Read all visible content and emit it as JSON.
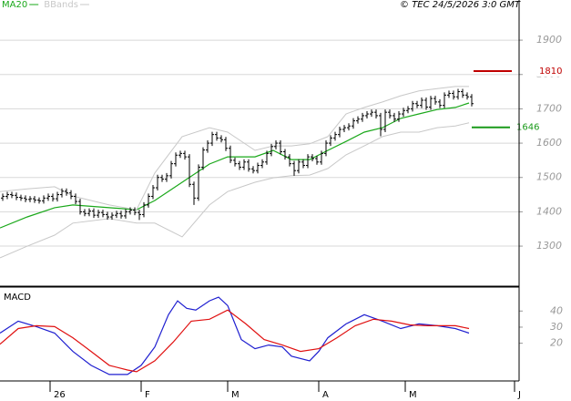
{
  "chart_data": [
    {
      "type": "ohlc",
      "copyright": "© TEC 24/5/2026 3:0 GMT",
      "color": "#000000",
      "xlim": [
        0,
        114
      ],
      "xticks": [
        {
          "value": 11,
          "label": "26"
        },
        {
          "value": 31,
          "label": "F"
        },
        {
          "value": 50,
          "label": "M"
        },
        {
          "value": 70,
          "label": "A"
        },
        {
          "value": 89,
          "label": "M"
        },
        {
          "value": 113,
          "label": "J"
        }
      ],
      "ylim": [
        1186,
        2017
      ],
      "yticks": [
        1300,
        1400,
        1500,
        1600,
        1700,
        1800,
        1900
      ],
      "grid": true,
      "open": [
        1440,
        1445,
        1450,
        1448,
        1442,
        1440,
        1436,
        1438,
        1434,
        1432,
        1440,
        1445,
        1438,
        1450,
        1460,
        1455,
        1445,
        1430,
        1400,
        1395,
        1402,
        1390,
        1398,
        1392,
        1385,
        1390,
        1395,
        1388,
        1400,
        1405,
        1398,
        1392,
        1420,
        1445,
        1470,
        1500,
        1495,
        1505,
        1540,
        1565,
        1570,
        1560,
        1480,
        1440,
        1530,
        1580,
        1600,
        1625,
        1615,
        1610,
        1585,
        1550,
        1540,
        1530,
        1545,
        1525,
        1520,
        1535,
        1545,
        1570,
        1590,
        1600,
        1575,
        1560,
        1540,
        1520,
        1545,
        1535,
        1560,
        1555,
        1545,
        1570,
        1600,
        1615,
        1625,
        1640,
        1645,
        1650,
        1665,
        1670,
        1680,
        1685,
        1690,
        1680,
        1640,
        1690,
        1680,
        1670,
        1685,
        1695,
        1700,
        1715,
        1710,
        1725,
        1705,
        1730,
        1720,
        1710,
        1740,
        1745,
        1735,
        1750,
        1740,
        1735
      ],
      "high": [
        1453,
        1458,
        1458,
        1456,
        1450,
        1448,
        1446,
        1446,
        1442,
        1448,
        1453,
        1453,
        1458,
        1468,
        1468,
        1463,
        1453,
        1438,
        1408,
        1410,
        1410,
        1406,
        1406,
        1400,
        1398,
        1403,
        1403,
        1408,
        1413,
        1413,
        1406,
        1428,
        1453,
        1478,
        1508,
        1508,
        1513,
        1548,
        1573,
        1578,
        1578,
        1568,
        1488,
        1538,
        1588,
        1608,
        1633,
        1633,
        1623,
        1618,
        1593,
        1558,
        1548,
        1553,
        1553,
        1533,
        1543,
        1553,
        1578,
        1598,
        1608,
        1608,
        1583,
        1568,
        1548,
        1553,
        1553,
        1568,
        1568,
        1563,
        1578,
        1608,
        1623,
        1633,
        1648,
        1653,
        1658,
        1673,
        1678,
        1688,
        1693,
        1698,
        1698,
        1688,
        1698,
        1698,
        1688,
        1693,
        1703,
        1708,
        1723,
        1723,
        1733,
        1733,
        1738,
        1738,
        1728,
        1748,
        1753,
        1753,
        1758,
        1758,
        1748,
        1743
      ],
      "low": [
        1432,
        1437,
        1440,
        1434,
        1432,
        1428,
        1428,
        1426,
        1424,
        1424,
        1432,
        1430,
        1430,
        1442,
        1447,
        1437,
        1422,
        1392,
        1387,
        1387,
        1382,
        1382,
        1384,
        1377,
        1377,
        1382,
        1380,
        1380,
        1392,
        1390,
        1376,
        1384,
        1412,
        1437,
        1462,
        1487,
        1487,
        1497,
        1532,
        1557,
        1552,
        1472,
        1420,
        1432,
        1522,
        1572,
        1592,
        1607,
        1602,
        1577,
        1542,
        1532,
        1522,
        1522,
        1517,
        1512,
        1512,
        1527,
        1537,
        1562,
        1582,
        1567,
        1552,
        1532,
        1505,
        1512,
        1527,
        1527,
        1547,
        1537,
        1537,
        1562,
        1592,
        1607,
        1617,
        1632,
        1637,
        1642,
        1657,
        1662,
        1672,
        1677,
        1672,
        1620,
        1632,
        1672,
        1662,
        1662,
        1677,
        1687,
        1692,
        1702,
        1702,
        1697,
        1697,
        1712,
        1702,
        1702,
        1732,
        1727,
        1727,
        1732,
        1727,
        1707
      ],
      "close": [
        1445,
        1450,
        1448,
        1442,
        1440,
        1436,
        1438,
        1434,
        1432,
        1440,
        1445,
        1438,
        1450,
        1460,
        1455,
        1445,
        1430,
        1400,
        1395,
        1402,
        1390,
        1398,
        1392,
        1385,
        1390,
        1395,
        1388,
        1400,
        1405,
        1398,
        1392,
        1420,
        1445,
        1470,
        1500,
        1495,
        1505,
        1540,
        1565,
        1570,
        1560,
        1480,
        1440,
        1530,
        1580,
        1600,
        1625,
        1615,
        1610,
        1585,
        1550,
        1540,
        1530,
        1545,
        1525,
        1520,
        1535,
        1545,
        1570,
        1590,
        1600,
        1575,
        1560,
        1540,
        1520,
        1545,
        1535,
        1560,
        1555,
        1545,
        1570,
        1600,
        1615,
        1625,
        1640,
        1645,
        1650,
        1665,
        1670,
        1680,
        1685,
        1690,
        1680,
        1640,
        1690,
        1680,
        1670,
        1685,
        1695,
        1700,
        1715,
        1710,
        1725,
        1705,
        1730,
        1720,
        1710,
        1740,
        1745,
        1735,
        1750,
        1740,
        1735,
        1715
      ],
      "series": [
        {
          "name": "MA20",
          "color": "#1aa81a",
          "x": [
            0,
            6,
            12,
            16,
            24,
            30,
            34,
            40,
            46,
            50,
            56,
            60,
            64,
            68,
            72,
            76,
            80,
            84,
            88,
            92,
            96,
            100,
            103
          ],
          "values": [
            1353,
            1385,
            1412,
            1420,
            1412,
            1406,
            1433,
            1486,
            1539,
            1560,
            1560,
            1579,
            1552,
            1552,
            1579,
            1605,
            1632,
            1645,
            1672,
            1685,
            1698,
            1704,
            1717
          ]
        },
        {
          "name": "BBands",
          "color": "#c8c8c8",
          "x": [
            0,
            6,
            12,
            16,
            24,
            30,
            34,
            40,
            46,
            50,
            56,
            60,
            64,
            68,
            72,
            76,
            80,
            84,
            88,
            92,
            96,
            100,
            103
          ],
          "values": [
            1459,
            1467,
            1473,
            1446,
            1420,
            1406,
            1513,
            1619,
            1645,
            1632,
            1579,
            1592,
            1592,
            1598,
            1619,
            1685,
            1704,
            1720,
            1738,
            1752,
            1759,
            1765,
            1765
          ],
          "lower": [
            1266,
            1300,
            1332,
            1367,
            1380,
            1367,
            1367,
            1327,
            1420,
            1459,
            1486,
            1499,
            1505,
            1507,
            1526,
            1566,
            1592,
            1619,
            1632,
            1632,
            1645,
            1650,
            1659
          ]
        }
      ],
      "levels": [
        {
          "value": 1810,
          "color": "#c00000"
        },
        {
          "value": 1646,
          "color": "#1a9a1a"
        }
      ]
    },
    {
      "type": "line",
      "title": "MACD",
      "ylim": [
        -3.4,
        54.3
      ],
      "yticks": [
        20,
        30,
        40
      ],
      "series": [
        {
          "color": "#1f1fd0",
          "x": [
            0,
            4,
            8,
            12,
            16,
            20,
            24,
            28,
            31,
            34,
            37,
            39,
            41,
            43,
            46,
            48,
            50,
            53,
            56,
            59,
            62,
            64,
            68,
            70,
            72,
            76,
            80,
            84,
            88,
            92,
            96,
            100,
            103
          ],
          "values": [
            26.3,
            33.7,
            30.3,
            26.3,
            14.9,
            6.3,
            0.6,
            0.6,
            6.3,
            17.7,
            37.7,
            46.3,
            41.7,
            40.6,
            46.3,
            48.6,
            43.4,
            22.3,
            16.6,
            18.9,
            17.7,
            12.0,
            9.1,
            14.9,
            23.4,
            32.0,
            37.7,
            33.7,
            29.1,
            32.0,
            30.9,
            29.1,
            26.3
          ]
        },
        {
          "color": "#e01010",
          "x": [
            0,
            4,
            8,
            12,
            16,
            20,
            24,
            28,
            30,
            34,
            38,
            42,
            46,
            50,
            54,
            58,
            62,
            66,
            70,
            74,
            78,
            82,
            86,
            90,
            94,
            100,
            103
          ],
          "values": [
            19.4,
            29.1,
            30.9,
            30.3,
            23.4,
            14.9,
            6.3,
            3.4,
            2.3,
            9.1,
            20.6,
            33.7,
            34.9,
            40.6,
            32.0,
            22.3,
            18.9,
            14.9,
            16.6,
            23.4,
            30.9,
            34.9,
            33.7,
            31.4,
            30.9,
            30.9,
            29.1
          ]
        }
      ]
    }
  ]
}
